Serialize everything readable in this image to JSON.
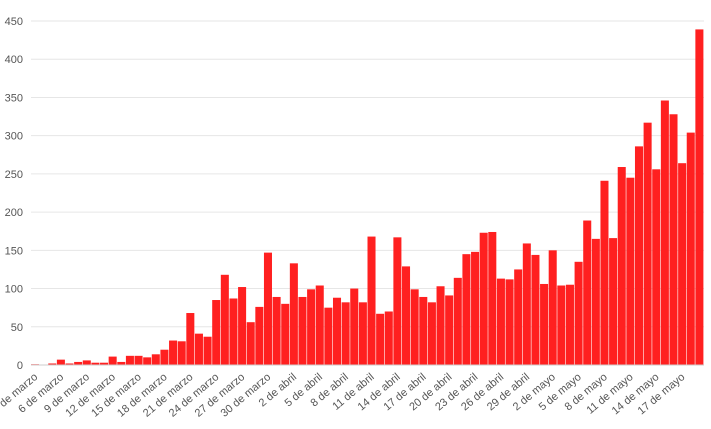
{
  "chart_data": {
    "type": "bar",
    "title": "",
    "xlabel": "",
    "ylabel": "",
    "ylim": [
      0,
      450
    ],
    "yticks": [
      0,
      50,
      100,
      150,
      200,
      250,
      300,
      350,
      400,
      450
    ],
    "grid": true,
    "bar_color": "#ff2020",
    "categories": [
      "3 de marzo",
      "4 de marzo",
      "5 de marzo",
      "6 de marzo",
      "7 de marzo",
      "8 de marzo",
      "9 de marzo",
      "10 de marzo",
      "11 de marzo",
      "12 de marzo",
      "13 de marzo",
      "14 de marzo",
      "15 de marzo",
      "16 de marzo",
      "17 de marzo",
      "18 de marzo",
      "19 de marzo",
      "20 de marzo",
      "21 de marzo",
      "22 de marzo",
      "23 de marzo",
      "24 de marzo",
      "25 de marzo",
      "26 de marzo",
      "27 de marzo",
      "28 de marzo",
      "29 de marzo",
      "30 de marzo",
      "31 de marzo",
      "1 de abril",
      "2 de abril",
      "3 de abril",
      "4 de abril",
      "5 de abril",
      "6 de abril",
      "7 de abril",
      "8 de abril",
      "9 de abril",
      "10 de abril",
      "11 de abril",
      "12 de abril",
      "13 de abril",
      "14 de abril",
      "15 de abril",
      "16 de abril",
      "17 de abril",
      "18 de abril",
      "19 de abril",
      "20 de abril",
      "21 de abril",
      "22 de abril",
      "23 de abril",
      "24 de abril",
      "25 de abril",
      "26 de abril",
      "27 de abril",
      "28 de abril",
      "29 de abril",
      "30 de abril",
      "1 de mayo",
      "2 de mayo",
      "3 de mayo",
      "4 de mayo",
      "5 de mayo",
      "6 de mayo",
      "7 de mayo",
      "8 de mayo",
      "9 de mayo",
      "10 de mayo",
      "11 de mayo",
      "12 de mayo",
      "13 de mayo",
      "14 de mayo",
      "15 de mayo",
      "16 de mayo",
      "17 de mayo",
      "18 de mayo",
      "19 de mayo"
    ],
    "values": [
      1,
      0,
      2,
      7,
      2,
      4,
      6,
      3,
      3,
      11,
      4,
      12,
      12,
      10,
      14,
      20,
      32,
      31,
      68,
      41,
      37,
      85,
      118,
      87,
      102,
      56,
      76,
      147,
      89,
      80,
      133,
      89,
      99,
      104,
      75,
      88,
      82,
      100,
      82,
      168,
      67,
      70,
      167,
      129,
      99,
      89,
      82,
      103,
      91,
      114,
      145,
      148,
      173,
      174,
      113,
      112,
      125,
      159,
      144,
      106,
      150,
      104,
      105,
      135,
      189,
      165,
      241,
      166,
      259,
      245,
      286,
      317,
      256,
      346,
      328,
      264,
      304,
      439
    ],
    "x_tick_labels": [
      "3 de marzo",
      "6 de marzo",
      "9 de marzo",
      "12 de marzo",
      "15 de marzo",
      "18 de marzo",
      "21 de marzo",
      "24 de marzo",
      "27 de marzo",
      "30 de marzo",
      "2 de abril",
      "5 de abril",
      "8 de abril",
      "11 de abril",
      "14 de abril",
      "17 de abril",
      "20 de abril",
      "23 de abril",
      "26 de abril",
      "29 de abril",
      "2 de mayo",
      "5 de mayo",
      "8 de mayo",
      "11 de mayo",
      "14 de mayo",
      "17 de mayo"
    ],
    "x_tick_every": 3
  }
}
